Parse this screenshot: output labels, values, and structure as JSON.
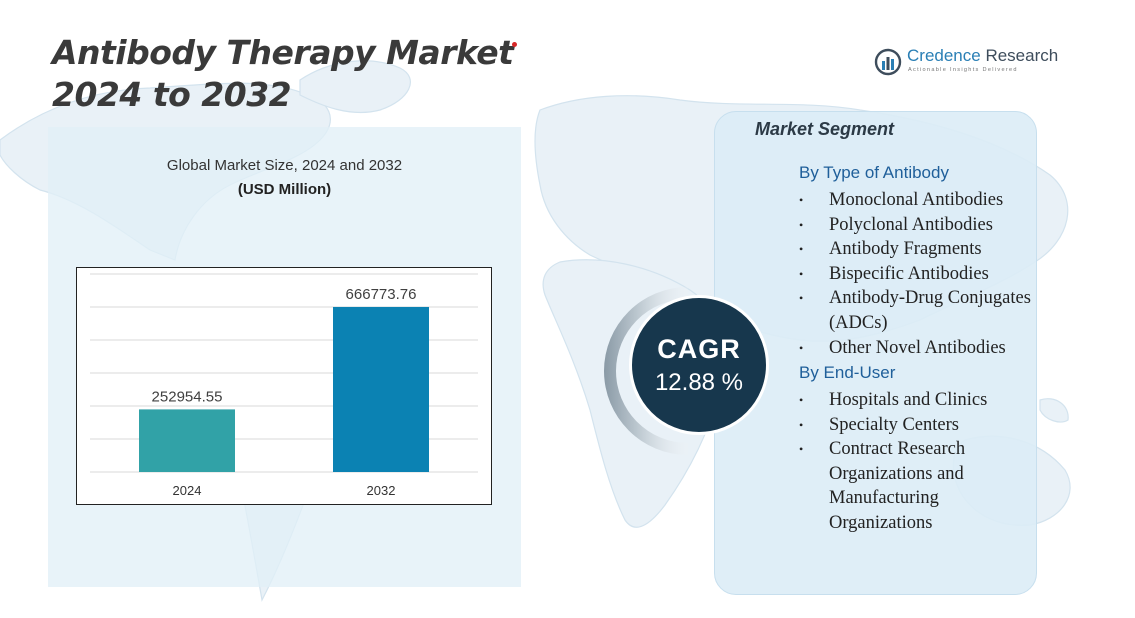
{
  "title": {
    "line1": "Antibody Therapy Market",
    "line2": "2024 to 2032"
  },
  "logo": {
    "name_part1": "Credence",
    "name_part2": "Research",
    "tagline": "Actionable Insights Delivered"
  },
  "chart_data": {
    "type": "bar",
    "title": "Global Market Size, 2024 and 2032",
    "subtitle": "(USD Million)",
    "categories": [
      "2024",
      "2032"
    ],
    "values": [
      252954.55,
      666773.76
    ],
    "value_labels": [
      "252954.55",
      "666773.76"
    ],
    "colors": [
      "#31a2a7",
      "#0b82b3"
    ],
    "ylim": [
      0,
      800000
    ],
    "grid": true
  },
  "cagr": {
    "label": "CAGR",
    "value": "12.88 %"
  },
  "segments": {
    "title": "Market Segment",
    "groups": [
      {
        "heading": "By Type of Antibody",
        "items": [
          "Monoclonal Antibodies",
          "Polyclonal Antibodies",
          "Antibody Fragments",
          "Bispecific Antibodies",
          "Antibody-Drug Conjugates (ADCs)",
          "Other Novel Antibodies"
        ]
      },
      {
        "heading": "By End-User",
        "items": [
          "Hospitals and Clinics",
          "Specialty Centers",
          "Contract Research Organizations and Manufacturing Organizations"
        ]
      }
    ],
    "bullet": "•"
  }
}
